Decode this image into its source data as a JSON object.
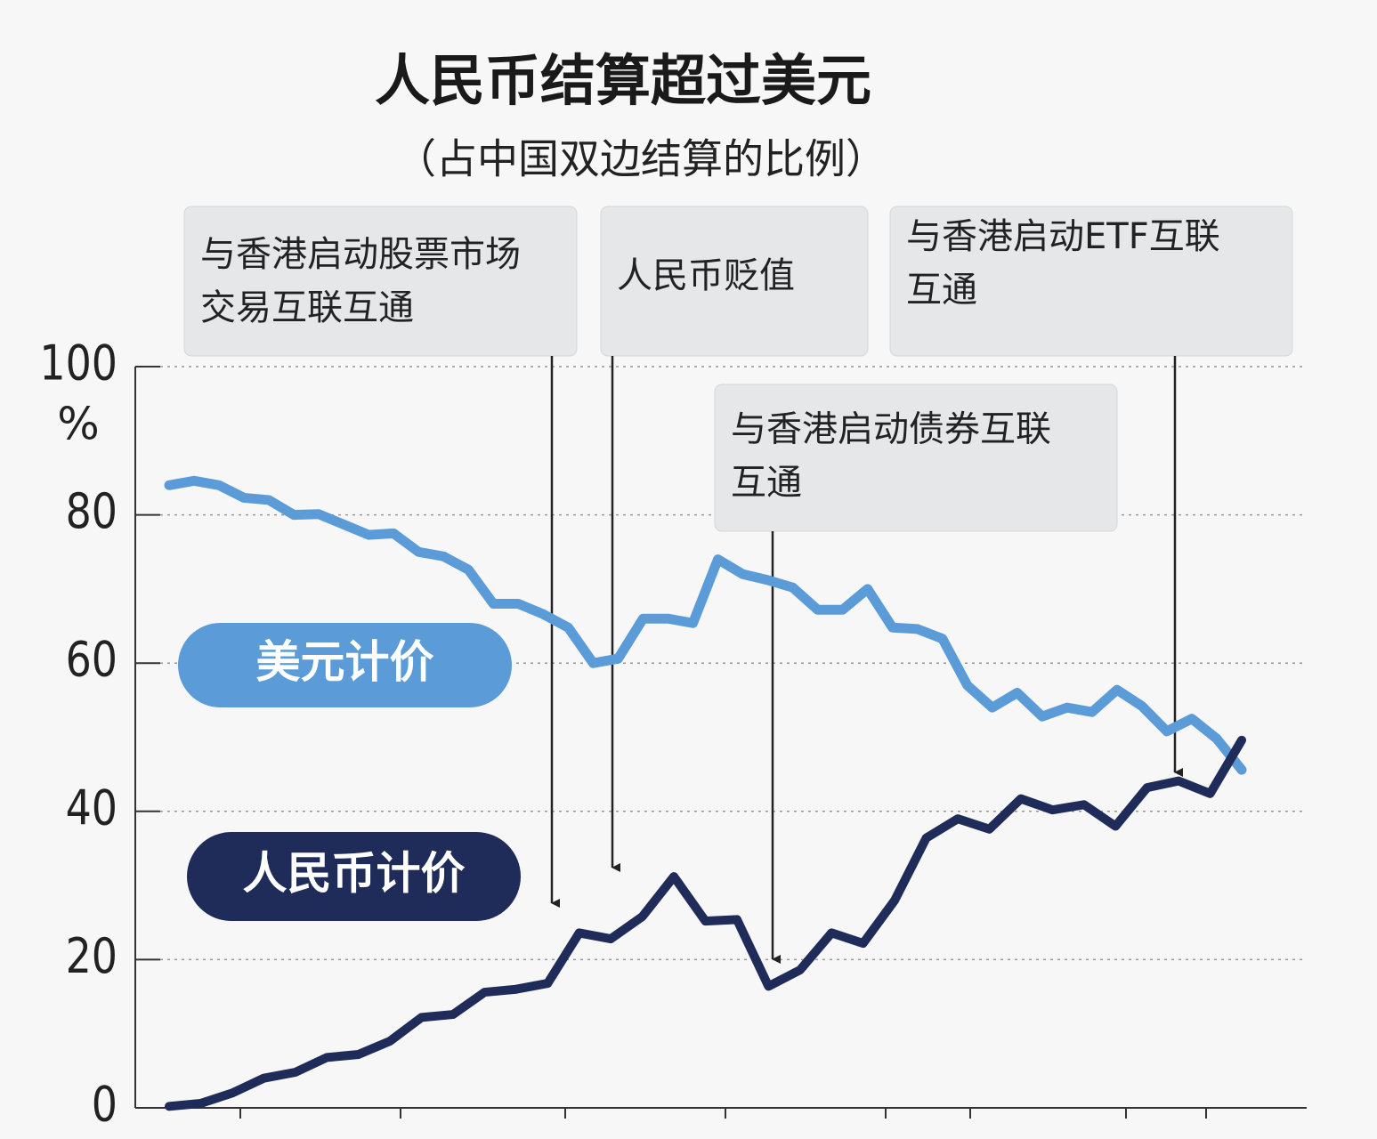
{
  "chart_data": {
    "type": "line",
    "title": "人民币结算超过美元",
    "subtitle": "（占中国双边结算的比例）",
    "y_unit": "%",
    "ylim": [
      0,
      100
    ],
    "yticks": [
      0,
      20,
      40,
      60,
      80,
      100
    ],
    "grid": true,
    "series": [
      {
        "name": "美元计价",
        "color": "#5b9bd8",
        "values": [
          84,
          84.6,
          84,
          82.3,
          82,
          80,
          80.1,
          78.7,
          77.3,
          77.5,
          75,
          74.4,
          72.6,
          68,
          68,
          66.6,
          64.8,
          60,
          60.6,
          66,
          66,
          65.4,
          74,
          72,
          71.2,
          70.2,
          67.2,
          67.2,
          70,
          64.8,
          64.6,
          63.3,
          57,
          54,
          56,
          52.8,
          54,
          53.4,
          56.4,
          54.2,
          50.8,
          52.5,
          49.8,
          45.6
        ]
      },
      {
        "name": "人民币计价",
        "color": "#1f2b58",
        "values": [
          0.2,
          0.6,
          2,
          4,
          4.8,
          6.8,
          7.2,
          9,
          12.2,
          12.6,
          15.6,
          16,
          16.8,
          23.6,
          22.8,
          25.8,
          31.2,
          25.2,
          25.4,
          16.4,
          18.6,
          23.6,
          22.2,
          28,
          36.4,
          39,
          37.6,
          41.7,
          40.2,
          40.9,
          38,
          43.2,
          44.1,
          42.4,
          49.6
        ]
      }
    ],
    "annotations": [
      {
        "lines": [
          "与香港启动股票市场",
          "交易互联互通"
        ]
      },
      {
        "lines": [
          "人民币贬值"
        ]
      },
      {
        "lines": [
          "与香港启动ETF互联",
          "互通"
        ]
      },
      {
        "lines": [
          "与香港启动债券互联",
          "互通"
        ]
      }
    ]
  }
}
